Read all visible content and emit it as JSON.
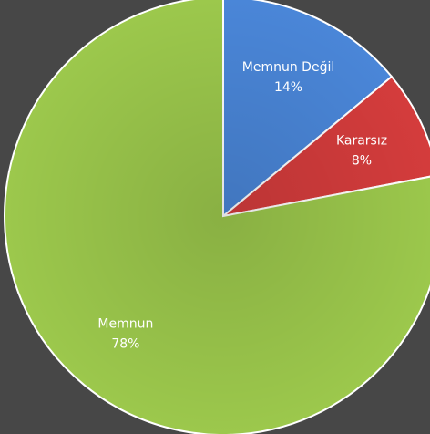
{
  "chart_data": {
    "type": "pie",
    "categories": [
      "Memnun Değil",
      "Kararsız",
      "Memnun"
    ],
    "values": [
      14,
      8,
      78
    ],
    "value_labels": [
      "14%",
      "8%",
      "78%"
    ],
    "colors": [
      "#4a86d8",
      "#d43c3c",
      "#9cc84c"
    ]
  }
}
